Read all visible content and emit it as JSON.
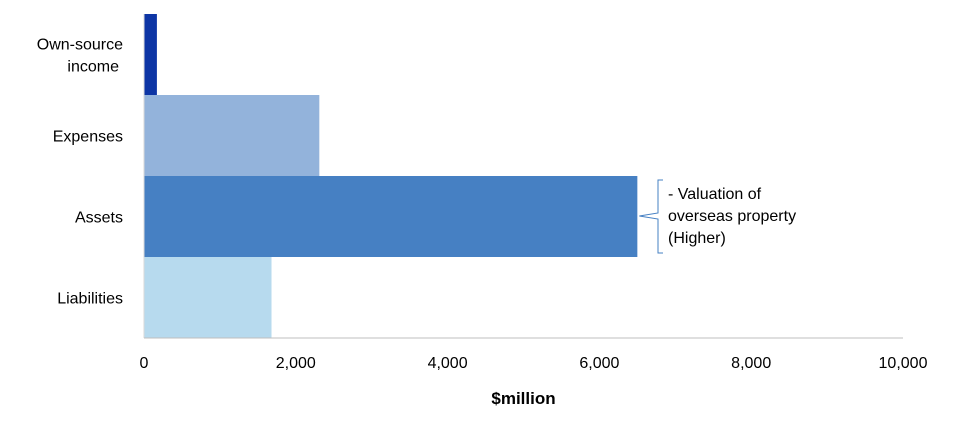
{
  "chart_data": {
    "type": "bar",
    "orientation": "horizontal",
    "categories": [
      [
        "Own-source",
        "income"
      ],
      [
        "Expenses"
      ],
      [
        "Assets"
      ],
      [
        "Liabilities"
      ]
    ],
    "values": [
      170,
      2310,
      6500,
      1680
    ],
    "colors": [
      "#0d35a5",
      "#93b3db",
      "#4680c3",
      "#b7daee"
    ],
    "xlim": [
      0,
      10000
    ],
    "xticks": [
      0,
      2000,
      4000,
      6000,
      8000,
      10000
    ],
    "xtick_labels": [
      "0",
      "2,000",
      "4,000",
      "6,000",
      "8,000",
      "10,000"
    ],
    "xlabel": "$million",
    "grid": false,
    "annotation": {
      "category_index": 2,
      "lines": [
        "- Valuation of",
        "overseas property",
        "(Higher)"
      ]
    }
  }
}
